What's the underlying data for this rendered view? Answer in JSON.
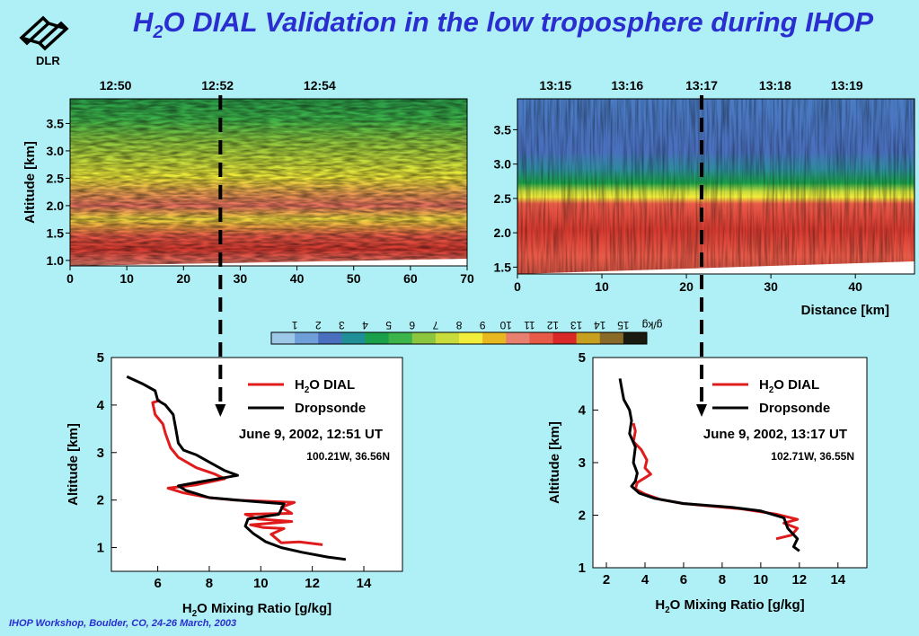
{
  "slide": {
    "title_prefix": "H",
    "title_sub": "2",
    "title_rest": "O DIAL Validation in the low troposphere during IHOP",
    "logo_text": "DLR",
    "footer": "IHOP Workshop, Boulder, CO, 24-26 March, 2003"
  },
  "colors": {
    "title": "#2a2ed0",
    "dial_line": "#e01b1b",
    "sonde_line": "#000000",
    "background": "#aef0f6"
  },
  "colorbar": {
    "ticks": [
      "1",
      "2",
      "3",
      "4",
      "5",
      "6",
      "7",
      "8",
      "9",
      "10",
      "11",
      "12",
      "13",
      "14",
      "15"
    ],
    "unit": "g/kg",
    "colors": [
      "#9dc8e8",
      "#6e9fd8",
      "#4a6fbe",
      "#1f8f98",
      "#1aa04a",
      "#3cb44a",
      "#8cc63f",
      "#c8dc3c",
      "#f2ec3a",
      "#e8b820",
      "#e88070",
      "#e85a48",
      "#d82828",
      "#c8a020",
      "#8a6a28",
      "#1a1a10"
    ]
  },
  "chart_data": [
    {
      "type": "heatmap",
      "id": "left-heatmap",
      "ylabel": "Altitude [km]",
      "xlabel": "",
      "xlim": [
        0,
        70
      ],
      "ylim": [
        0.9,
        3.95
      ],
      "x_ticks": [
        "0",
        "10",
        "20",
        "30",
        "40",
        "50",
        "60",
        "70"
      ],
      "y_ticks": [
        "1.0",
        "1.5",
        "2.0",
        "2.5",
        "3.0",
        "3.5"
      ],
      "time_ticks": [
        {
          "label": "12:50",
          "x": 8
        },
        {
          "label": "12:52",
          "x": 26
        },
        {
          "label": "12:54",
          "x": 44
        }
      ],
      "dashed_marker_x": 26.5
    },
    {
      "type": "heatmap",
      "id": "right-heatmap",
      "ylabel": "",
      "xlabel": "Distance [km]",
      "xlim": [
        0,
        47
      ],
      "ylim": [
        1.4,
        3.95
      ],
      "x_ticks": [
        "0",
        "10",
        "20",
        "30",
        "40"
      ],
      "y_ticks": [
        "1.5",
        "2.0",
        "2.5",
        "3.0",
        "3.5"
      ],
      "time_ticks": [
        {
          "label": "13:15",
          "x": 4.5
        },
        {
          "label": "13:16",
          "x": 13
        },
        {
          "label": "13:17",
          "x": 21.8
        },
        {
          "label": "13:18",
          "x": 30.5
        },
        {
          "label": "13:19",
          "x": 39
        }
      ],
      "dashed_marker_x": 21.8
    },
    {
      "type": "line",
      "id": "left-profile",
      "xlabel_prefix": "H",
      "xlabel_sub": "2",
      "xlabel_rest": "O Mixing Ratio [g/kg]",
      "ylabel": "Altitude [km]",
      "xlim": [
        4.2,
        15.5
      ],
      "ylim": [
        0.5,
        5.0
      ],
      "x_ticks": [
        6,
        8,
        10,
        12,
        14
      ],
      "y_ticks": [
        1,
        2,
        3,
        4,
        5
      ],
      "date_label": "June 9, 2002, 12:51 UT",
      "coord_label": "100.21W, 36.56N",
      "legend": {
        "dial_prefix": "H",
        "dial_sub": "2",
        "dial_rest": "O DIAL",
        "sonde": "Dropsonde"
      },
      "series": [
        {
          "name": "H2O DIAL",
          "color": "#e01b1b",
          "points": [
            [
              12.4,
              1.06
            ],
            [
              11.5,
              1.12
            ],
            [
              10.8,
              1.1
            ],
            [
              10.4,
              1.28
            ],
            [
              10.9,
              1.4
            ],
            [
              10.1,
              1.42
            ],
            [
              9.6,
              1.48
            ],
            [
              10.1,
              1.5
            ],
            [
              11.2,
              1.55
            ],
            [
              9.9,
              1.6
            ],
            [
              9.4,
              1.7
            ],
            [
              11.2,
              1.72
            ],
            [
              10.8,
              1.85
            ],
            [
              11.3,
              1.95
            ],
            [
              9.0,
              2.0
            ],
            [
              8.0,
              2.05
            ],
            [
              7.0,
              2.15
            ],
            [
              6.4,
              2.25
            ],
            [
              7.5,
              2.32
            ],
            [
              8.6,
              2.45
            ],
            [
              8.2,
              2.55
            ],
            [
              7.5,
              2.68
            ],
            [
              6.8,
              2.9
            ],
            [
              6.5,
              3.1
            ],
            [
              6.3,
              3.4
            ],
            [
              6.2,
              3.6
            ],
            [
              5.9,
              3.8
            ],
            [
              5.8,
              4.05
            ],
            [
              6.1,
              4.1
            ]
          ]
        },
        {
          "name": "Dropsonde",
          "color": "#000000",
          "points": [
            [
              13.3,
              0.75
            ],
            [
              12.6,
              0.8
            ],
            [
              11.6,
              0.9
            ],
            [
              10.8,
              1.0
            ],
            [
              10.2,
              1.12
            ],
            [
              9.7,
              1.3
            ],
            [
              9.4,
              1.45
            ],
            [
              9.5,
              1.6
            ],
            [
              10.7,
              1.7
            ],
            [
              10.9,
              1.92
            ],
            [
              9.5,
              1.98
            ],
            [
              8.0,
              2.05
            ],
            [
              7.1,
              2.2
            ],
            [
              6.8,
              2.3
            ],
            [
              7.6,
              2.38
            ],
            [
              9.1,
              2.52
            ],
            [
              8.6,
              2.62
            ],
            [
              8.0,
              2.8
            ],
            [
              7.5,
              2.95
            ],
            [
              7.0,
              3.05
            ],
            [
              6.8,
              3.2
            ],
            [
              6.7,
              3.5
            ],
            [
              6.6,
              3.8
            ],
            [
              6.3,
              4.0
            ],
            [
              6.0,
              4.1
            ],
            [
              5.9,
              4.3
            ],
            [
              5.4,
              4.45
            ],
            [
              4.8,
              4.6
            ]
          ]
        }
      ]
    },
    {
      "type": "line",
      "id": "right-profile",
      "xlabel_prefix": "H",
      "xlabel_sub": "2",
      "xlabel_rest": "O Mixing Ratio [g/kg]",
      "ylabel": "Altitude [km]",
      "xlim": [
        1.3,
        15.5
      ],
      "ylim": [
        1.0,
        5.0
      ],
      "x_ticks": [
        2,
        4,
        6,
        8,
        10,
        12,
        14
      ],
      "y_ticks": [
        1,
        2,
        3,
        4,
        5
      ],
      "date_label": "June 9, 2002, 13:17 UT",
      "coord_label": "102.71W, 36.55N",
      "legend": {
        "dial_prefix": "H",
        "dial_sub": "2",
        "dial_rest": "O DIAL",
        "sonde": "Dropsonde"
      },
      "series": [
        {
          "name": "H2O DIAL",
          "color": "#e01b1b",
          "points": [
            [
              10.8,
              1.55
            ],
            [
              11.6,
              1.62
            ],
            [
              11.9,
              1.75
            ],
            [
              11.2,
              1.85
            ],
            [
              11.9,
              1.92
            ],
            [
              10.8,
              2.02
            ],
            [
              9.0,
              2.12
            ],
            [
              6.0,
              2.22
            ],
            [
              4.8,
              2.3
            ],
            [
              4.0,
              2.4
            ],
            [
              3.5,
              2.5
            ],
            [
              3.6,
              2.62
            ],
            [
              4.3,
              2.78
            ],
            [
              4.0,
              2.9
            ],
            [
              4.1,
              3.05
            ],
            [
              3.8,
              3.25
            ],
            [
              3.4,
              3.4
            ],
            [
              3.5,
              3.6
            ],
            [
              3.4,
              3.75
            ]
          ]
        },
        {
          "name": "Dropsonde",
          "color": "#000000",
          "points": [
            [
              12.0,
              1.32
            ],
            [
              11.7,
              1.4
            ],
            [
              11.9,
              1.55
            ],
            [
              11.4,
              1.75
            ],
            [
              11.2,
              1.95
            ],
            [
              10.0,
              2.08
            ],
            [
              8.5,
              2.15
            ],
            [
              6.0,
              2.22
            ],
            [
              4.5,
              2.32
            ],
            [
              3.7,
              2.42
            ],
            [
              3.3,
              2.55
            ],
            [
              3.5,
              2.65
            ],
            [
              3.6,
              2.8
            ],
            [
              3.4,
              3.0
            ],
            [
              3.5,
              3.3
            ],
            [
              3.2,
              3.55
            ],
            [
              3.3,
              3.8
            ],
            [
              3.2,
              4.0
            ],
            [
              2.9,
              4.2
            ],
            [
              2.8,
              4.4
            ],
            [
              2.7,
              4.6
            ]
          ]
        }
      ]
    }
  ]
}
